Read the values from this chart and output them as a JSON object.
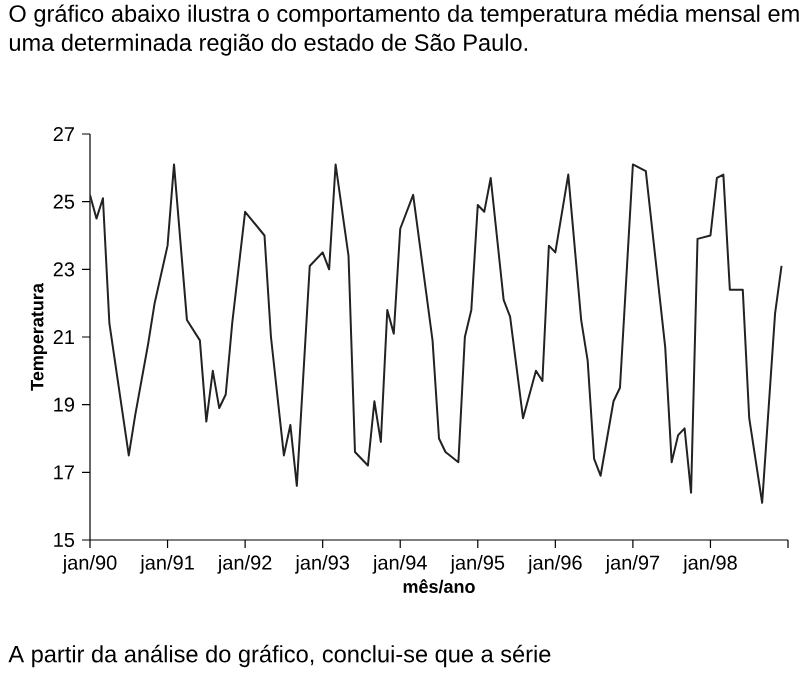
{
  "chart_data": {
    "type": "line",
    "title": "O gráfico abaixo ilustra o comportamento da temperatura média mensal em uma determinada região do estado de São Paulo.",
    "xlabel": "mês/ano",
    "ylabel": "Temperatura",
    "annotations": [
      "A partir da análise do gráfico, conclui-se que a série"
    ],
    "xlim": [
      "1990-01",
      "1999-01"
    ],
    "ylim": [
      15,
      27
    ],
    "yticks": [
      15,
      17,
      19,
      21,
      23,
      25,
      27
    ],
    "xticks": [
      {
        "value": "1990-01",
        "label": "jan/90"
      },
      {
        "value": "1991-01",
        "label": "jan/91"
      },
      {
        "value": "1992-01",
        "label": "jan/92"
      },
      {
        "value": "1993-01",
        "label": "jan/93"
      },
      {
        "value": "1994-01",
        "label": "jan/94"
      },
      {
        "value": "1995-01",
        "label": "jan/95"
      },
      {
        "value": "1996-01",
        "label": "jan/96"
      },
      {
        "value": "1997-01",
        "label": "jan/97"
      },
      {
        "value": "1998-01",
        "label": "jan/98"
      },
      {
        "value": "1999-01",
        "label": null
      }
    ],
    "grid": false,
    "series": [
      {
        "color": "#222222",
        "x": [
          "1990-01",
          "1990-02",
          "1990-03",
          "1990-04",
          "1990-07",
          "1990-08",
          "1990-10",
          "1990-11",
          "1991-01",
          "1991-02",
          "1991-04",
          "1991-06",
          "1991-07",
          "1991-08",
          "1991-09",
          "1991-10",
          "1991-11",
          "1992-01",
          "1992-04",
          "1992-05",
          "1992-07",
          "1992-08",
          "1992-09",
          "1992-11",
          "1993-01",
          "1993-02",
          "1993-03",
          "1993-05",
          "1993-06",
          "1993-08",
          "1993-09",
          "1993-10",
          "1993-11",
          "1993-12",
          "1994-01",
          "1994-03",
          "1994-06",
          "1994-07",
          "1994-08",
          "1994-10",
          "1994-11",
          "1994-12",
          "1995-01",
          "1995-02",
          "1995-03",
          "1995-05",
          "1995-06",
          "1995-08",
          "1995-10",
          "1995-11",
          "1995-12",
          "1996-01",
          "1996-03",
          "1996-05",
          "1996-06",
          "1996-07",
          "1996-08",
          "1996-10",
          "1996-11",
          "1997-01",
          "1997-03",
          "1997-06",
          "1997-07",
          "1997-08",
          "1997-09",
          "1997-10",
          "1997-11",
          "1998-01",
          "1998-02",
          "1998-03",
          "1998-04",
          "1998-06",
          "1998-07",
          "1998-09",
          "1998-11",
          "1998-12"
        ],
        "values": [
          25.2,
          24.5,
          25.1,
          21.4,
          17.5,
          18.7,
          20.8,
          22.0,
          23.7,
          26.1,
          21.5,
          20.9,
          18.5,
          20.0,
          18.9,
          19.3,
          21.4,
          24.7,
          24.0,
          21.0,
          17.5,
          18.4,
          16.6,
          23.1,
          23.5,
          23.0,
          26.1,
          23.4,
          17.6,
          17.2,
          19.1,
          17.9,
          21.8,
          21.1,
          24.2,
          25.2,
          20.9,
          18.0,
          17.6,
          17.3,
          21.0,
          21.8,
          24.9,
          24.7,
          25.7,
          22.1,
          21.6,
          18.6,
          20.0,
          19.7,
          23.7,
          23.5,
          25.8,
          21.5,
          20.3,
          17.4,
          16.9,
          19.1,
          19.5,
          26.1,
          25.9,
          20.7,
          17.3,
          18.1,
          18.3,
          16.4,
          23.9,
          24.0,
          25.7,
          25.8,
          22.4,
          22.4,
          18.6,
          16.1,
          21.7,
          23.1
        ]
      }
    ]
  }
}
